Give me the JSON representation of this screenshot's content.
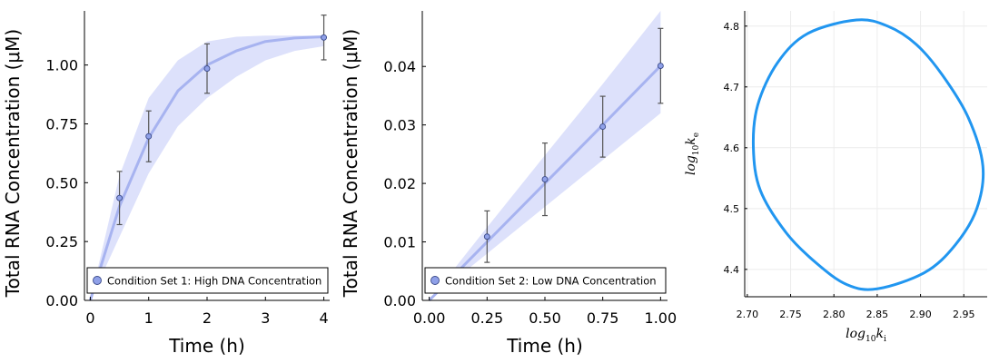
{
  "chart_data": [
    {
      "type": "line",
      "xlabel": "Time (h)",
      "ylabel": "Total RNA Concentration (μM)",
      "xlim": [
        -0.1,
        4.1
      ],
      "ylim": [
        0,
        1.23
      ],
      "xticks": [
        0,
        1,
        2,
        3,
        4
      ],
      "xtick_labels": [
        "0",
        "1",
        "2",
        "3",
        "4"
      ],
      "yticks": [
        0,
        0.25,
        0.5,
        0.75,
        1.0
      ],
      "ytick_labels": [
        "0.00",
        "0.25",
        "0.50",
        "0.75",
        "1.00"
      ],
      "legend": "bottom-right",
      "series": [
        {
          "name": "Condition Set 1: High DNA Concentration",
          "kind": "observations",
          "x": [
            0.5,
            1,
            2,
            4
          ],
          "y": [
            0.435,
            0.697,
            0.985,
            1.117
          ],
          "err": [
            0.113,
            0.108,
            0.105,
            0.095
          ],
          "color": "#8fa0e8"
        },
        {
          "kind": "model-fit",
          "x": [
            0,
            0.5,
            1,
            1.5,
            2,
            2.5,
            3,
            3.5,
            4
          ],
          "y": [
            0,
            0.4,
            0.69,
            0.89,
            1.0,
            1.06,
            1.1,
            1.115,
            1.12
          ],
          "lower": [
            0,
            0.27,
            0.54,
            0.74,
            0.86,
            0.95,
            1.02,
            1.06,
            1.08
          ],
          "upper": [
            0,
            0.53,
            0.86,
            1.02,
            1.1,
            1.12,
            1.125,
            1.125,
            1.125
          ],
          "color": "#a7b3f0",
          "band_color": "#dde1fb"
        }
      ]
    },
    {
      "type": "line",
      "xlabel": "Time (h)",
      "ylabel": "Total RNA Concentration (μM)",
      "xlim": [
        -0.03,
        1.03
      ],
      "ylim": [
        0,
        0.0495
      ],
      "xticks": [
        0,
        0.25,
        0.5,
        0.75,
        1.0
      ],
      "xtick_labels": [
        "0.00",
        "0.25",
        "0.50",
        "0.75",
        "1.00"
      ],
      "yticks": [
        0,
        0.01,
        0.02,
        0.03,
        0.04
      ],
      "ytick_labels": [
        "0.00",
        "0.01",
        "0.02",
        "0.03",
        "0.04"
      ],
      "legend": "bottom-right",
      "series": [
        {
          "name": "Condition Set 2: Low DNA Concentration",
          "kind": "observations",
          "x": [
            0.25,
            0.5,
            0.75,
            1.0
          ],
          "y": [
            0.0109,
            0.0207,
            0.0297,
            0.0401
          ],
          "err": [
            0.0044,
            0.0062,
            0.0052,
            0.0064
          ],
          "color": "#8fa0e8"
        },
        {
          "kind": "model-fit",
          "x": [
            0,
            0.25,
            0.5,
            0.75,
            1.0
          ],
          "y": [
            0,
            0.01,
            0.02,
            0.03,
            0.0401
          ],
          "lower": [
            0,
            0.008,
            0.016,
            0.024,
            0.032
          ],
          "upper": [
            0,
            0.0125,
            0.0248,
            0.037,
            0.0495
          ],
          "color": "#a7b3f0",
          "band_color": "#dde1fb"
        }
      ]
    },
    {
      "type": "line",
      "xlabel": "log10 ki",
      "ylabel": "log10 ke",
      "xlim": [
        2.697,
        2.977
      ],
      "ylim": [
        4.355,
        4.825
      ],
      "xticks": [
        2.7,
        2.75,
        2.8,
        2.85,
        2.9,
        2.95
      ],
      "xtick_labels": [
        "2.70",
        "2.75",
        "2.80",
        "2.85",
        "2.90",
        "2.95"
      ],
      "yticks": [
        4.4,
        4.5,
        4.6,
        4.7,
        4.8
      ],
      "ytick_labels": [
        "4.4",
        "4.5",
        "4.6",
        "4.7",
        "4.8"
      ],
      "grid": true,
      "series": [
        {
          "kind": "ellipse",
          "color": "#2196f0",
          "points": [
            [
              2.826,
              4.81
            ],
            [
              2.862,
              4.8
            ],
            [
              2.895,
              4.77
            ],
            [
              2.925,
              4.72
            ],
            [
              2.955,
              4.65
            ],
            [
              2.972,
              4.57
            ],
            [
              2.965,
              4.5
            ],
            [
              2.94,
              4.44
            ],
            [
              2.905,
              4.395
            ],
            [
              2.85,
              4.368
            ],
            [
              2.815,
              4.375
            ],
            [
              2.78,
              4.41
            ],
            [
              2.745,
              4.46
            ],
            [
              2.715,
              4.53
            ],
            [
              2.707,
              4.6
            ],
            [
              2.712,
              4.67
            ],
            [
              2.735,
              4.74
            ],
            [
              2.77,
              4.788
            ],
            [
              2.826,
              4.81
            ]
          ]
        }
      ]
    }
  ]
}
